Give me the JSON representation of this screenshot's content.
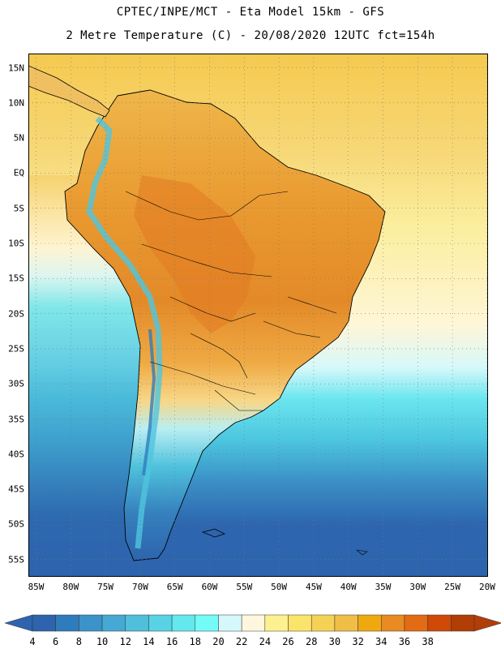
{
  "header": {
    "line1": "CPTEC/INPE/MCT -  Eta Model 15km - GFS",
    "line2": "2 Metre Temperature (C) - 20/08/2020 12UTC fct=154h"
  },
  "map": {
    "lat_labels": [
      "15N",
      "10N",
      "5N",
      "EQ",
      "5S",
      "10S",
      "15S",
      "20S",
      "25S",
      "30S",
      "35S",
      "40S",
      "45S",
      "50S",
      "55S"
    ],
    "lon_labels": [
      "85W",
      "80W",
      "75W",
      "70W",
      "65W",
      "60W",
      "55W",
      "50W",
      "45W",
      "40W",
      "35W",
      "30W",
      "25W",
      "20W"
    ],
    "grid": "dotted",
    "ocean_warm": "#f5cf5c",
    "ocean_cool": "#5fd8e6",
    "land_hot": "#e28a2b",
    "land_cold": "#2f6fae"
  },
  "colorbar": {
    "labels": [
      "4",
      "6",
      "8",
      "10",
      "12",
      "14",
      "16",
      "18",
      "20",
      "22",
      "24",
      "26",
      "28",
      "30",
      "32",
      "34",
      "36",
      "38"
    ],
    "colors": [
      "#2d64ad",
      "#2f7cbc",
      "#3b93c9",
      "#46a9d3",
      "#4fbfdc",
      "#58d3e6",
      "#63e8ee",
      "#73fbf7",
      "#d5f8fb",
      "#fff7dd",
      "#fdf18f",
      "#fbe46a",
      "#f5d256",
      "#f0be47",
      "#efa90f",
      "#e98a23",
      "#e26b13",
      "#cf4907",
      "#b23e07"
    ],
    "arrow_left": "#2d64ad",
    "arrow_right": "#b23e07"
  }
}
